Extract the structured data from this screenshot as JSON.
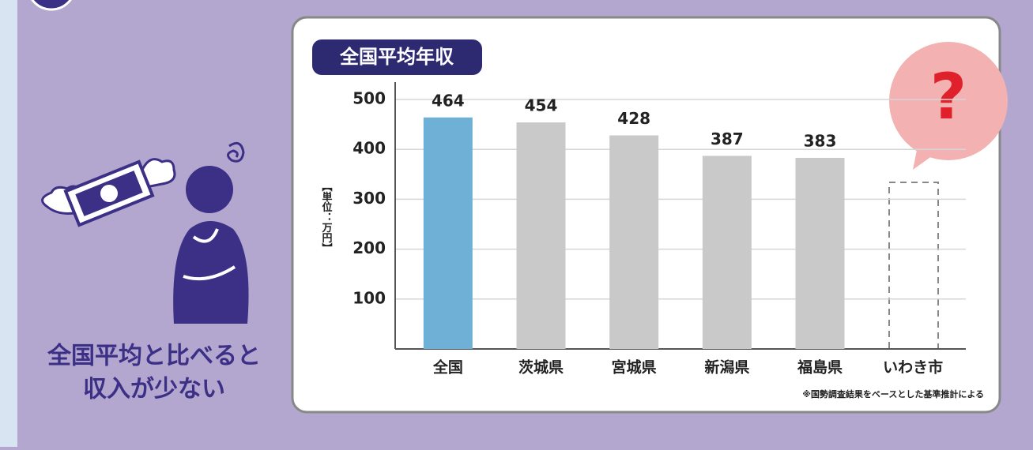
{
  "side_text": {
    "lines": [
      "全国平均と比べると",
      "収入が少ない"
    ]
  },
  "chart_data": {
    "type": "bar",
    "title": "全国平均年収",
    "y_label": "【単位：万円】",
    "categories": [
      "全国",
      "茨城県",
      "宮城県",
      "新潟県",
      "福島県",
      "いわき市"
    ],
    "series": [
      {
        "name": "全国平均年収",
        "colors": [
          "#6fb0d6",
          "#c9c9c9",
          "#c9c9c9",
          "#c9c9c9",
          "#c9c9c9",
          "#c9c9c9"
        ],
        "values": [
          464,
          454,
          428,
          387,
          383,
          null
        ]
      }
    ],
    "ylim": [
      0,
      500
    ],
    "yticks": [
      100,
      200,
      300,
      400,
      500
    ],
    "grid": true,
    "annotation": "?",
    "note": "※国勢調査結果をベースとした基準推計による"
  }
}
